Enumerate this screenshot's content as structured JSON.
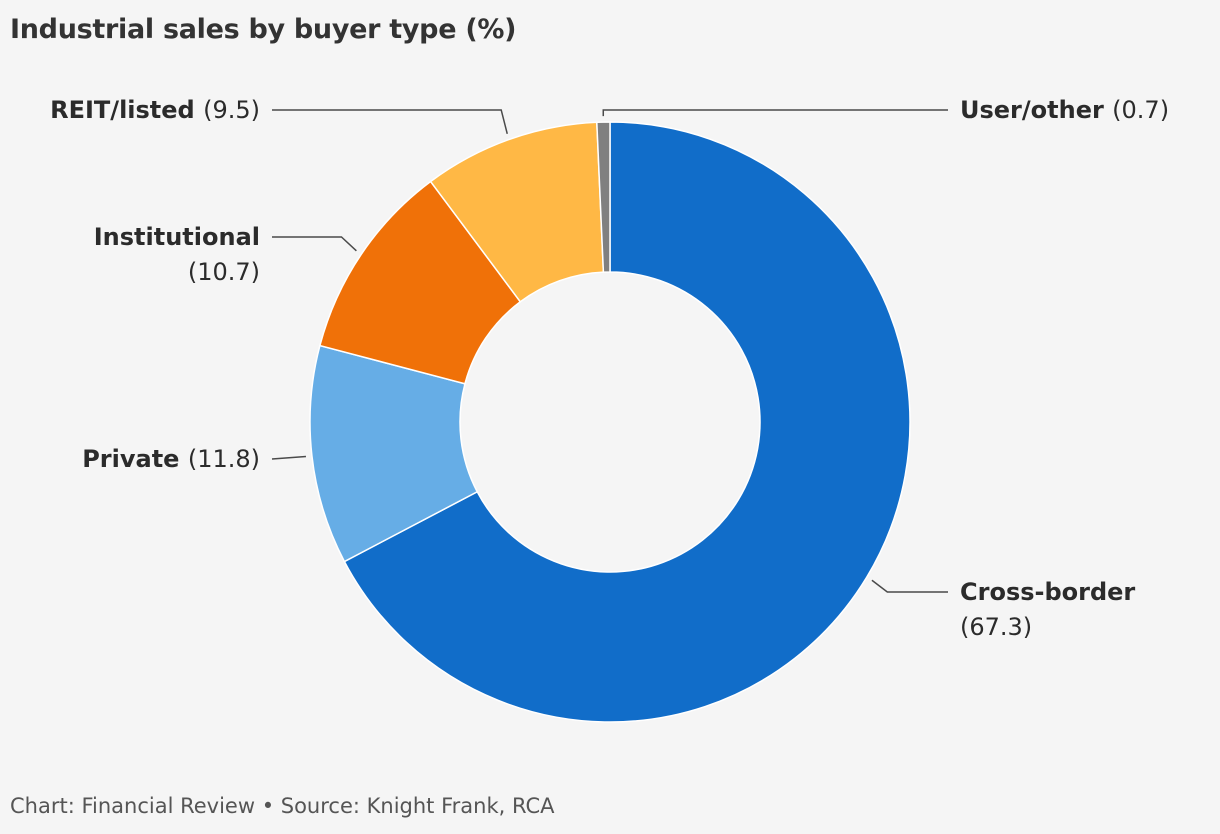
{
  "title": "Industrial sales by buyer type (%)",
  "source": "Chart: Financial Review • Source: Knight Frank, RCA",
  "chart_data": {
    "type": "pie",
    "title": "Industrial sales by buyer type (%)",
    "unit": "%",
    "slices": [
      {
        "label": "Cross-border",
        "value": 67.3,
        "value_text": "(67.3)",
        "color": "#116dc9"
      },
      {
        "label": "Private",
        "value": 11.8,
        "value_text": "(11.8)",
        "color": "#66ade6"
      },
      {
        "label": "Institutional",
        "value": 10.7,
        "value_text": "(10.7)",
        "color": "#f07108"
      },
      {
        "label": "REIT/listed",
        "value": 9.5,
        "value_text": "(9.5)",
        "color": "#ffb845"
      },
      {
        "label": "User/other",
        "value": 0.7,
        "value_text": "(0.7)",
        "color": "#808080"
      }
    ]
  }
}
